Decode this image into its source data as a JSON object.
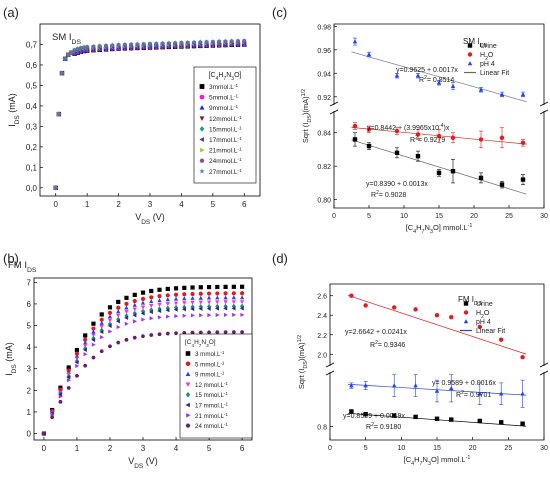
{
  "figure": {
    "background": "#ffffff"
  },
  "chart_data": [
    {
      "panel_label": "(a)",
      "type": "scatter",
      "title": "SM I",
      "title_sub": "DS",
      "xlabel_main": "V",
      "xlabel_sub": "DS",
      "xlabel_tail": " (V)",
      "ylabel_main": "I",
      "ylabel_sub": "DS",
      "ylabel_tail": " (mA)",
      "xlim": [
        -0.5,
        6.5
      ],
      "ylim": [
        -0.04,
        0.8
      ],
      "xticks": [
        0,
        1,
        2,
        3,
        4,
        5,
        6
      ],
      "yticks": [
        0.0,
        0.1,
        0.2,
        0.3,
        0.4,
        0.5,
        0.6,
        0.7
      ],
      "ytick_labels": [
        "0,0",
        "0,1",
        "0,2",
        "0,3",
        "0,4",
        "0,5",
        "0,6",
        "0,7"
      ],
      "legend_title": "[C4H7N3O]",
      "legend_position": "right",
      "x": [
        0,
        0.1,
        0.2,
        0.3,
        0.4,
        0.5,
        0.6,
        0.7,
        0.8,
        0.9,
        1.0,
        1.2,
        1.4,
        1.6,
        1.8,
        2.0,
        2.2,
        2.4,
        2.6,
        2.8,
        3.0,
        3.2,
        3.4,
        3.6,
        3.8,
        4.0,
        4.2,
        4.4,
        4.6,
        4.8,
        5.0,
        5.2,
        5.4,
        5.6,
        5.8,
        6.0
      ],
      "y": [
        0.0,
        0.36,
        0.56,
        0.63,
        0.65,
        0.66,
        0.665,
        0.67,
        0.675,
        0.678,
        0.68,
        0.682,
        0.684,
        0.686,
        0.688,
        0.69,
        0.691,
        0.692,
        0.693,
        0.694,
        0.695,
        0.696,
        0.697,
        0.698,
        0.699,
        0.7,
        0.701,
        0.702,
        0.703,
        0.704,
        0.705,
        0.706,
        0.707,
        0.708,
        0.709,
        0.71
      ],
      "series": [
        {
          "name": "3mmol.L",
          "unit_sup": "-1",
          "color": "#000000",
          "marker": "square"
        },
        {
          "name": "5mmol.L",
          "unit_sup": "-1",
          "color": "#ee1ad8",
          "marker": "circle"
        },
        {
          "name": "9mmol.L",
          "unit_sup": "-1",
          "color": "#2222ee",
          "marker": "triangle-up"
        },
        {
          "name": "12mmol.L",
          "unit_sup": "-1",
          "color": "#8b1a1a",
          "marker": "triangle-down"
        },
        {
          "name": "15mmol.L",
          "unit_sup": "-1",
          "color": "#2a9d8f",
          "marker": "diamond"
        },
        {
          "name": "17mmol.L",
          "unit_sup": "-1",
          "color": "#3a3aa0",
          "marker": "triangle-left"
        },
        {
          "name": "21mmol.L",
          "unit_sup": "-1",
          "color": "#9acd32",
          "marker": "triangle-right"
        },
        {
          "name": "24mmol.L",
          "unit_sup": "-1",
          "color": "#8b4d8b",
          "marker": "hexagon"
        },
        {
          "name": "27mmol.L",
          "unit_sup": "-1",
          "color": "#4682b4",
          "marker": "star"
        }
      ]
    },
    {
      "panel_label": "(b)",
      "type": "scatter",
      "title": "FM I",
      "title_sub": "DS",
      "xlabel_main": "V",
      "xlabel_sub": "DS",
      "xlabel_tail": " (V)",
      "ylabel_main": "I",
      "ylabel_sub": "DS",
      "ylabel_tail": " (mA)",
      "xlim": [
        -0.3,
        6.3
      ],
      "ylim": [
        -0.3,
        7.2
      ],
      "xticks": [
        0,
        1,
        2,
        3,
        4,
        5,
        6
      ],
      "yticks": [
        0,
        1,
        2,
        3,
        4,
        5,
        6,
        7
      ],
      "legend_title": "[C4H7N3O]",
      "legend_position": "right",
      "x": [
        0,
        0.25,
        0.5,
        0.75,
        1.0,
        1.25,
        1.5,
        1.75,
        2.0,
        2.25,
        2.5,
        2.75,
        3.0,
        3.25,
        3.5,
        3.75,
        4.0,
        4.25,
        4.5,
        4.75,
        5.0,
        5.25,
        5.5,
        5.75,
        6.0
      ],
      "series": [
        {
          "name": "3 mmol.L",
          "unit_sup": "-1",
          "color": "#000000",
          "marker": "square",
          "sat": 6.8
        },
        {
          "name": "5 mmol.L",
          "unit_sup": "-1",
          "color": "#e41a1c",
          "marker": "circle",
          "sat": 6.5
        },
        {
          "name": "9 mmol.L",
          "unit_sup": "-1",
          "color": "#1f3fff",
          "marker": "triangle-up",
          "sat": 6.3
        },
        {
          "name": "12 mmol.L",
          "unit_sup": "-1",
          "color": "#ff2bd6",
          "marker": "triangle-down",
          "sat": 6.1
        },
        {
          "name": "15 mmol.L",
          "unit_sup": "-1",
          "color": "#1e8a8a",
          "marker": "diamond",
          "sat": 5.9
        },
        {
          "name": "17 mmol.L",
          "unit_sup": "-1",
          "color": "#2a2a80",
          "marker": "triangle-left",
          "sat": 5.8
        },
        {
          "name": "21 mmol.L",
          "unit_sup": "-1",
          "color": "#9b30ff",
          "marker": "triangle-right",
          "sat": 5.5
        },
        {
          "name": "24 mmol.L",
          "unit_sup": "-1",
          "color": "#6a1b6a",
          "marker": "hexagon",
          "sat": 4.7
        }
      ]
    },
    {
      "panel_label": "(c)",
      "type": "scatter",
      "title": "SM I",
      "title_sub": "DS",
      "xlabel_main": "[C",
      "xlabel_formula": [
        "C",
        "4",
        "H",
        "7",
        "N",
        "3",
        "O"
      ],
      "xlabel_tail": "] mmol.L",
      "xlabel_sup": "-1",
      "ylabel": "Sqrt (I",
      "ylabel_sub": "DS",
      "ylabel_tail": ")(mA)",
      "ylabel_sup": "1/2",
      "xlim": [
        0,
        30
      ],
      "xticks": [
        0,
        5,
        10,
        15,
        20,
        25,
        30
      ],
      "y_break": true,
      "upper_ylim": [
        0.913,
        0.982
      ],
      "upper_yticks": [
        0.92,
        0.94,
        0.96,
        0.98
      ],
      "lower_ylim": [
        0.795,
        0.853
      ],
      "lower_yticks": [
        0.8,
        0.82,
        0.84
      ],
      "legend": [
        {
          "name": "Urine",
          "marker": "square",
          "color": "#000000"
        },
        {
          "name": "H",
          "sub": "2",
          "tail": "O",
          "marker": "circle",
          "color": "#e41a1c"
        },
        {
          "name": "pH 4",
          "marker": "triangle-up",
          "color": "#1f3fff"
        },
        {
          "name": "Linear Fit",
          "marker": "line",
          "color": "#666666"
        }
      ],
      "series": [
        {
          "name": "Urine",
          "color": "#000000",
          "marker": "square",
          "x": [
            3,
            5,
            9,
            12,
            15,
            17,
            21,
            24,
            27
          ],
          "y": [
            0.836,
            0.832,
            0.828,
            0.826,
            0.816,
            0.817,
            0.813,
            0.809,
            0.812
          ],
          "err": [
            0.004,
            0.002,
            0.003,
            0.003,
            0.002,
            0.007,
            0.003,
            0.002,
            0.003
          ],
          "fit": [
            0.839,
            0.0013
          ],
          "axis": "lower"
        },
        {
          "name": "H2O",
          "color": "#e41a1c",
          "marker": "circle",
          "x": [
            3,
            5,
            9,
            12,
            15,
            17,
            21,
            24,
            27
          ],
          "y": [
            0.844,
            0.842,
            0.841,
            0.839,
            0.838,
            0.837,
            0.836,
            0.837,
            0.834
          ],
          "err": [
            0.002,
            0.002,
            0.002,
            0.003,
            0.004,
            0.003,
            0.005,
            0.006,
            0.002
          ],
          "fit": [
            0.8442,
            0.00039965
          ],
          "axis": "lower"
        },
        {
          "name": "pH 4",
          "color": "#1f3fff",
          "marker": "triangle-up",
          "x": [
            3,
            5,
            9,
            12,
            15,
            17,
            21,
            24,
            27
          ],
          "y": [
            0.967,
            0.956,
            0.938,
            0.938,
            0.932,
            0.929,
            0.926,
            0.922,
            0.922
          ],
          "err": [
            0.003,
            0.002,
            0.002,
            0.002,
            0.002,
            0.003,
            0.002,
            0.002,
            0.002
          ],
          "fit": [
            0.9625,
            0.0017
          ],
          "axis": "upper"
        }
      ],
      "annotations": [
        {
          "text": "y=0.9625 + 0.0017x",
          "color": "#1f3fff"
        },
        {
          "text": "R",
          "sup": "2",
          "tail": "= 0.8514",
          "color": "#1f3fff"
        },
        {
          "text": "y=0.8442 + (3.9965x10",
          "sup": "-4",
          "tail": ")x",
          "color": "#e41a1c"
        },
        {
          "text": "R",
          "sup": "2",
          "tail": "= 0.9279",
          "color": "#e41a1c"
        },
        {
          "text": "y=0.8390 + 0.0013x",
          "color": "#000000"
        },
        {
          "text": "R",
          "sup": "2",
          "tail": "= 0.9028",
          "color": "#000000"
        }
      ]
    },
    {
      "panel_label": "(d)",
      "type": "scatter",
      "title": "FM I",
      "title_sub": "DS",
      "ylabel": "Sqrt (I",
      "ylabel_sub": "DS",
      "ylabel_tail": ")(mA)",
      "ylabel_sup": "1/2",
      "xlabel_formula": [
        "C",
        "4",
        "H",
        "7",
        "N",
        "3",
        "O"
      ],
      "xlabel_tail": "] mmol.L",
      "xlabel_sup": "-1",
      "xlim": [
        0,
        30
      ],
      "xticks": [
        0,
        5,
        10,
        15,
        20,
        25,
        30
      ],
      "y_break": true,
      "upper_ylim": [
        1.88,
        2.72
      ],
      "upper_yticks": [
        2.0,
        2.2,
        2.4,
        2.6
      ],
      "lower_ylim": [
        0.75,
        1.0
      ],
      "lower_yticks": [
        0.8
      ],
      "legend": [
        {
          "name": "Urine",
          "marker": "square",
          "color": "#000000"
        },
        {
          "name": "H",
          "sub": "2",
          "tail": "O",
          "marker": "circle",
          "color": "#e41a1c"
        },
        {
          "name": "pH 4",
          "marker": "triangle-up",
          "color": "#1f3fff"
        },
        {
          "name": "Linear Fit",
          "marker": "line",
          "color": "#1f3fff"
        }
      ],
      "series": [
        {
          "name": "Urine",
          "color": "#000000",
          "marker": "square",
          "x": [
            3,
            5,
            9,
            12,
            15,
            17,
            21,
            24,
            27
          ],
          "y": [
            0.855,
            0.845,
            0.84,
            0.835,
            0.828,
            0.825,
            0.82,
            0.815,
            0.81
          ],
          "err": [
            0.005,
            0.005,
            0.005,
            0.005,
            0.005,
            0.005,
            0.005,
            0.005,
            0.005
          ],
          "fit": [
            0.8529,
            0.0019
          ],
          "axis": "lower"
        },
        {
          "name": "H2O",
          "color": "#e41a1c",
          "marker": "circle",
          "x": [
            3,
            5,
            9,
            12,
            15,
            17,
            21,
            24,
            27
          ],
          "y": [
            2.6,
            2.5,
            2.48,
            2.46,
            2.4,
            2.38,
            2.28,
            2.15,
            1.97
          ],
          "err": [
            0,
            0,
            0,
            0,
            0,
            0,
            0,
            0,
            0
          ],
          "fit": [
            2.6642,
            0.0241
          ],
          "axis": "upper"
        },
        {
          "name": "pH 4",
          "color": "#1f3fff",
          "marker": "triangle-up",
          "x": [
            3,
            5,
            9,
            12,
            15,
            17,
            21,
            24,
            27
          ],
          "y": [
            0.95,
            0.95,
            0.95,
            0.95,
            0.93,
            0.94,
            0.92,
            0.92,
            0.92
          ],
          "err": [
            0.01,
            0.015,
            0.04,
            0.04,
            0.04,
            0.05,
            0.04,
            0.04,
            0.05
          ],
          "fit": [
            0.9589,
            0.0016
          ],
          "axis": "lower"
        }
      ],
      "annotations": [
        {
          "text": "y=2.6642 + 0.0241x",
          "color": "#e41a1c"
        },
        {
          "text": "R",
          "sup": "2",
          "tail": "= 0.9346",
          "color": "#e41a1c"
        },
        {
          "text": "y= 0.9589 + 0.0016x",
          "color": "#1f3fff"
        },
        {
          "text": "R",
          "sup": "2",
          "tail": "= 0.9701",
          "color": "#1f3fff"
        },
        {
          "text": "y=0.8529 + 0.0019x",
          "color": "#000000"
        },
        {
          "text": "R",
          "sup": "2",
          "tail": "= 0.9180",
          "color": "#000000"
        }
      ]
    }
  ]
}
